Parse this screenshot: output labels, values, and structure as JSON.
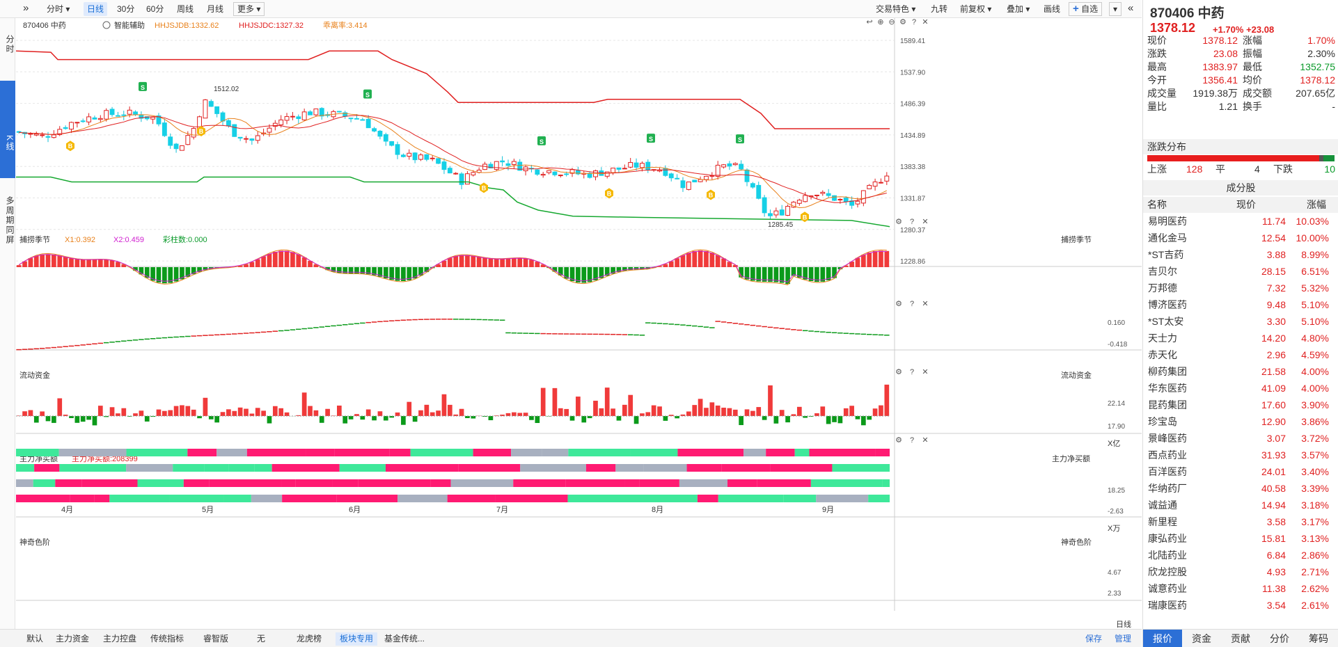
{
  "toolbar": {
    "collapse_icon": "double-chevron-right-icon",
    "periods": [
      "分时",
      "日线",
      "30分",
      "60分",
      "周线",
      "月线",
      "更多"
    ],
    "active_period": "日线",
    "right": [
      "交易特色",
      "九转",
      "前复权",
      "叠加",
      "画线",
      "自选"
    ],
    "right_icon": "double-chevron-left-icon"
  },
  "left_nav": [
    "分时",
    "K线",
    "多周期同屏"
  ],
  "main_chart": {
    "code_name": "870406 中药",
    "assist": "智能辅助",
    "ind1": "HHJSJDB:1332.62",
    "ind2": "HHJSJDC:1327.32",
    "ind3": "乖离率:3.414",
    "yticks": [
      "1589.41",
      "1537.90",
      "1486.39",
      "1434.89",
      "1383.38",
      "1331.87",
      "1280.37",
      "1228.86"
    ],
    "high_label": "1512.02",
    "low_label": "1285.45",
    "months": [
      "4月",
      "5月",
      "6月",
      "7月",
      "8月",
      "9月"
    ],
    "period_label": "日线"
  },
  "panels": {
    "catch": {
      "title": "捕捞季节",
      "x1": "X1:0.392",
      "x2": "X2:0.459",
      "bar": "彩柱数:0.000",
      "ticks": [
        "0.160",
        "-0.418"
      ]
    },
    "flow": {
      "title": "流动资金",
      "ticks": [
        "22.14",
        "17.90"
      ],
      "unit": "X亿"
    },
    "net": {
      "title": "主力净买额",
      "value": "主力净买额:208399",
      "ticks": [
        "18.25",
        "-2.63"
      ],
      "unit": "X万"
    },
    "color": {
      "title": "神奇色阶",
      "ticks": [
        "4.67",
        "2.33"
      ]
    }
  },
  "bottom_tabs": [
    "默认",
    "主力资金",
    "主力控盘",
    "传统指标",
    "睿智版",
    "无",
    "龙虎榜",
    "板块专用",
    "基金传统..."
  ],
  "active_bottom_tab": "板块专用",
  "bottom_right": [
    "保存",
    "管理"
  ],
  "quote": {
    "title": "870406 中药",
    "price": "1378.12",
    "change": "+1.70% +23.08",
    "rows": [
      [
        "现价",
        "1378.12",
        "red",
        "涨幅",
        "1.70%",
        "red"
      ],
      [
        "涨跌",
        "23.08",
        "red",
        "振幅",
        "2.30%",
        "blk"
      ],
      [
        "最高",
        "1383.97",
        "red",
        "最低",
        "1352.75",
        "green"
      ],
      [
        "今开",
        "1356.41",
        "red",
        "均价",
        "1378.12",
        "red"
      ],
      [
        "成交量",
        "1919.38万",
        "blk",
        "成交额",
        "207.65亿",
        "blk"
      ],
      [
        "量比",
        "1.21",
        "blk",
        "换手",
        "-",
        "blk"
      ]
    ],
    "dist_title": "涨跌分布",
    "up_label": "上涨",
    "up": "128",
    "flat_label": "平",
    "flat": "4",
    "down_label": "下跌",
    "down": "10",
    "constituents_title": "成分股",
    "cols": [
      "名称",
      "现价",
      "涨幅"
    ],
    "stocks": [
      [
        "易明医药",
        "11.74",
        "10.03%"
      ],
      [
        "通化金马",
        "12.54",
        "10.00%"
      ],
      [
        "*ST吉药",
        "3.88",
        "8.99%"
      ],
      [
        "吉贝尔",
        "28.15",
        "6.51%"
      ],
      [
        "万邦德",
        "7.32",
        "5.32%"
      ],
      [
        "博济医药",
        "9.48",
        "5.10%"
      ],
      [
        "*ST太安",
        "3.30",
        "5.10%"
      ],
      [
        "天士力",
        "14.20",
        "4.80%"
      ],
      [
        "赤天化",
        "2.96",
        "4.59%"
      ],
      [
        "柳药集团",
        "21.58",
        "4.00%"
      ],
      [
        "华东医药",
        "41.09",
        "4.00%"
      ],
      [
        "昆药集团",
        "17.60",
        "3.90%"
      ],
      [
        "珍宝岛",
        "12.90",
        "3.86%"
      ],
      [
        "景峰医药",
        "3.07",
        "3.72%"
      ],
      [
        "西点药业",
        "31.93",
        "3.57%"
      ],
      [
        "百洋医药",
        "24.01",
        "3.40%"
      ],
      [
        "华纳药厂",
        "40.58",
        "3.39%"
      ],
      [
        "诚益通",
        "14.94",
        "3.18%"
      ],
      [
        "新里程",
        "3.58",
        "3.17%"
      ],
      [
        "康弘药业",
        "15.81",
        "3.13%"
      ],
      [
        "北陆药业",
        "6.84",
        "2.86%"
      ],
      [
        "欣龙控股",
        "4.93",
        "2.71%"
      ],
      [
        "诚意药业",
        "11.38",
        "2.62%"
      ],
      [
        "瑞康医药",
        "3.54",
        "2.61%"
      ]
    ],
    "tabs": [
      "报价",
      "资金",
      "贡献",
      "分价",
      "筹码"
    ],
    "active_tab": "报价"
  },
  "colors": {
    "up": "#f03a3a",
    "down": "#0fd0e0",
    "green": "#0a9a2a",
    "accent": "#2c6fd6"
  }
}
